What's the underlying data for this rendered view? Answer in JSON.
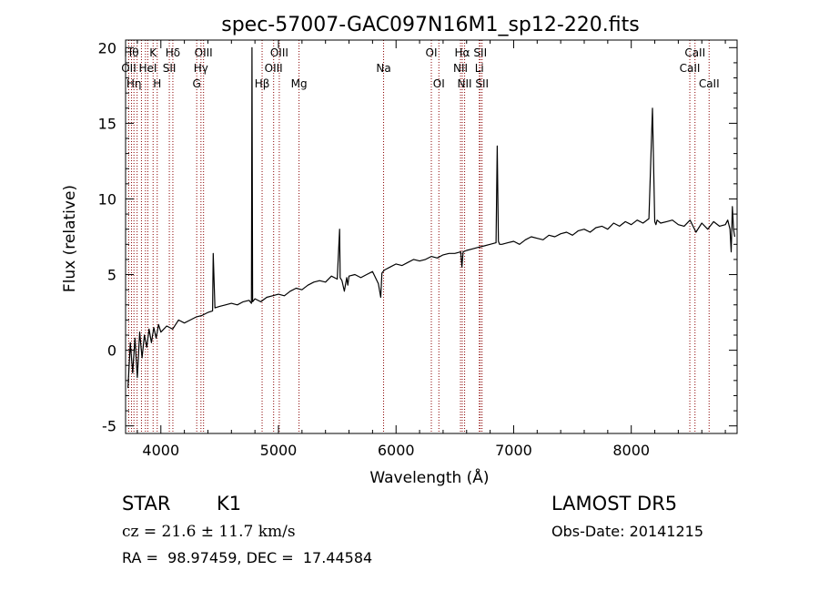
{
  "chart_data": {
    "type": "line",
    "title": "spec-57007-GAC097N16M1_sp12-220.fits",
    "xlabel": "Wavelength (Å)",
    "ylabel": "Flux (relative)",
    "xlim": [
      3700,
      8900
    ],
    "ylim": [
      -5.5,
      20.5
    ],
    "x_ticks": [
      4000,
      5000,
      6000,
      7000,
      8000
    ],
    "y_ticks": [
      -5,
      0,
      5,
      10,
      15,
      20
    ],
    "grid": false,
    "line_color": "#000000",
    "marker_color": "#8b0000",
    "series": [
      {
        "x": [
          3720,
          3740,
          3760,
          3780,
          3800,
          3820,
          3840,
          3860,
          3880,
          3900,
          3920,
          3940,
          3960,
          3980,
          4000,
          4050,
          4100,
          4150,
          4200,
          4250,
          4300,
          4350,
          4400,
          4440,
          4445,
          4460,
          4500,
          4550,
          4600,
          4650,
          4700,
          4750,
          4770,
          4775,
          4780,
          4800,
          4850,
          4900,
          4950,
          5000,
          5050,
          5100,
          5150,
          5200,
          5250,
          5300,
          5350,
          5400,
          5450,
          5500,
          5520,
          5525,
          5540,
          5560,
          5580,
          5590,
          5600,
          5650,
          5700,
          5750,
          5800,
          5850,
          5870,
          5880,
          5900,
          5950,
          6000,
          6050,
          6100,
          6150,
          6200,
          6250,
          6300,
          6350,
          6400,
          6450,
          6500,
          6550,
          6560,
          6570,
          6600,
          6650,
          6700,
          6750,
          6800,
          6850,
          6860,
          6870,
          6880,
          6900,
          6950,
          7000,
          7050,
          7100,
          7150,
          7200,
          7250,
          7300,
          7350,
          7400,
          7450,
          7500,
          7550,
          7600,
          7650,
          7700,
          7750,
          7800,
          7850,
          7900,
          7950,
          8000,
          8050,
          8100,
          8150,
          8180,
          8200,
          8210,
          8220,
          8250,
          8300,
          8350,
          8400,
          8450,
          8500,
          8550,
          8600,
          8650,
          8700,
          8750,
          8800,
          8820,
          8840,
          8850,
          8860,
          8870,
          8880
        ],
        "y": [
          -2.5,
          0.5,
          -1.5,
          0.8,
          -1.8,
          1.2,
          -0.5,
          1.0,
          0.2,
          1.4,
          0.5,
          1.5,
          0.8,
          1.7,
          1.2,
          1.6,
          1.4,
          2.0,
          1.8,
          2.0,
          2.2,
          2.3,
          2.5,
          2.6,
          6.4,
          2.8,
          2.9,
          3.0,
          3.1,
          3.0,
          3.2,
          3.3,
          3.1,
          20.0,
          3.2,
          3.4,
          3.2,
          3.5,
          3.6,
          3.7,
          3.6,
          3.9,
          4.1,
          4.0,
          4.3,
          4.5,
          4.6,
          4.5,
          4.9,
          4.7,
          8.0,
          4.8,
          4.6,
          3.9,
          4.8,
          4.3,
          4.9,
          5.0,
          4.8,
          5.0,
          5.2,
          4.4,
          3.5,
          5.1,
          5.3,
          5.5,
          5.7,
          5.6,
          5.8,
          6.0,
          5.9,
          6.0,
          6.2,
          6.1,
          6.3,
          6.4,
          6.4,
          6.5,
          5.5,
          6.5,
          6.6,
          6.7,
          6.8,
          6.9,
          7.0,
          7.1,
          13.5,
          7.2,
          7.0,
          7.0,
          7.1,
          7.2,
          7.0,
          7.3,
          7.5,
          7.4,
          7.3,
          7.6,
          7.5,
          7.7,
          7.8,
          7.6,
          7.9,
          8.0,
          7.8,
          8.1,
          8.2,
          8.0,
          8.4,
          8.2,
          8.5,
          8.3,
          8.6,
          8.4,
          8.7,
          16.0,
          8.5,
          8.3,
          8.6,
          8.4,
          8.5,
          8.6,
          8.3,
          8.2,
          8.6,
          7.8,
          8.4,
          8.0,
          8.5,
          8.2,
          8.3,
          8.6,
          8.0,
          6.5,
          9.5,
          8.0,
          7.5
        ]
      }
    ],
    "line_markers": [
      {
        "wavelength": 3727,
        "label": "OII",
        "row": 2
      },
      {
        "wavelength": 3750,
        "label": "Hθ",
        "row": 1
      },
      {
        "wavelength": 3771,
        "label": "Hη",
        "row": 3
      },
      {
        "wavelength": 3798,
        "label": "",
        "row": 0
      },
      {
        "wavelength": 3835,
        "label": "",
        "row": 0
      },
      {
        "wavelength": 3869,
        "label": "",
        "row": 0
      },
      {
        "wavelength": 3889,
        "label": "HeI",
        "row": 2
      },
      {
        "wavelength": 3934,
        "label": "K",
        "row": 1
      },
      {
        "wavelength": 3969,
        "label": "H",
        "row": 3
      },
      {
        "wavelength": 4072,
        "label": "SII",
        "row": 2
      },
      {
        "wavelength": 4102,
        "label": "Hδ",
        "row": 1
      },
      {
        "wavelength": 4305,
        "label": "G",
        "row": 3
      },
      {
        "wavelength": 4341,
        "label": "Hγ",
        "row": 2
      },
      {
        "wavelength": 4363,
        "label": "OIII",
        "row": 1
      },
      {
        "wavelength": 4861,
        "label": "Hβ",
        "row": 3
      },
      {
        "wavelength": 4959,
        "label": "OIII",
        "row": 2
      },
      {
        "wavelength": 5007,
        "label": "OIII",
        "row": 1
      },
      {
        "wavelength": 5175,
        "label": "Mg",
        "row": 3
      },
      {
        "wavelength": 5894,
        "label": "Na",
        "row": 2
      },
      {
        "wavelength": 6300,
        "label": "OI",
        "row": 1
      },
      {
        "wavelength": 6364,
        "label": "OI",
        "row": 3
      },
      {
        "wavelength": 6548,
        "label": "NII",
        "row": 2
      },
      {
        "wavelength": 6563,
        "label": "Hα",
        "row": 1
      },
      {
        "wavelength": 6583,
        "label": "NII",
        "row": 3
      },
      {
        "wavelength": 6708,
        "label": "Li",
        "row": 2
      },
      {
        "wavelength": 6716,
        "label": "SII",
        "row": 1
      },
      {
        "wavelength": 6731,
        "label": "SII",
        "row": 3
      },
      {
        "wavelength": 8498,
        "label": "CaII",
        "row": 2
      },
      {
        "wavelength": 8542,
        "label": "CaII",
        "row": 1
      },
      {
        "wavelength": 8662,
        "label": "CaII",
        "row": 3
      }
    ]
  },
  "info": {
    "object_class": "STAR",
    "subclass": "K1",
    "redshift_text": "cz = 21.6 ± 11.7 km/s",
    "coords_text": "RA =  98.97459, DEC =  17.44584",
    "survey": "LAMOST DR5",
    "obs_date": "Obs-Date: 20141215"
  }
}
